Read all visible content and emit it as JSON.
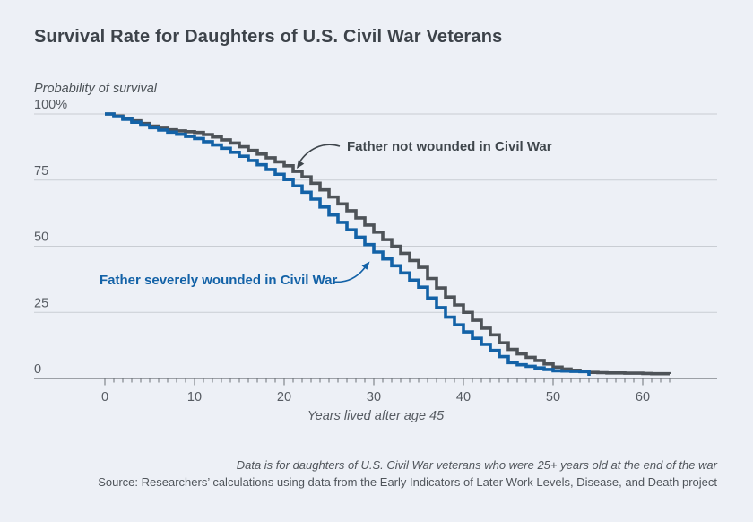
{
  "title": "Survival Rate for Daughters of U.S. Civil War Veterans",
  "footer": {
    "note": "Data is for daughters of U.S. Civil War veterans who were 25+ years old at the end of the war",
    "source": "Source: Researchers’ calculations using data from the Early Indicators of Later Work Levels, Disease, and Death project"
  },
  "colors": {
    "background": "#edf0f6",
    "gridline": "#c9cdd3",
    "axis": "#6b7077",
    "tick_label": "#565b62",
    "title": "#3d434a",
    "series_not_wounded": "#4e5358",
    "series_wounded": "#1362a7"
  },
  "chart_data": {
    "type": "line",
    "subtype": "step-survival",
    "title": "Survival Rate for Daughters of U.S. Civil War Veterans",
    "ylabel": "Probability of survival",
    "xlabel": "Years lived after age 45",
    "ylim": [
      0,
      100
    ],
    "xlim": [
      0,
      63
    ],
    "grid": true,
    "yticks": [
      {
        "value": 100,
        "label": "100%"
      },
      {
        "value": 75,
        "label": "75"
      },
      {
        "value": 50,
        "label": "50"
      },
      {
        "value": 25,
        "label": "25"
      },
      {
        "value": 0,
        "label": "0"
      }
    ],
    "xticks": [
      0,
      10,
      20,
      30,
      40,
      50,
      60
    ],
    "minor_tick_interval": 1,
    "series": [
      {
        "name": "Father not wounded in Civil War",
        "color": "#4e5358",
        "x_start": 0,
        "x_step": 1,
        "values": [
          100,
          99.2,
          98.3,
          97.4,
          96.4,
          95.4,
          94.6,
          94.0,
          93.6,
          93.3,
          93.0,
          92.2,
          91.3,
          90.2,
          89.0,
          87.6,
          86.2,
          84.8,
          83.4,
          81.9,
          80.4,
          78.3,
          76.2,
          73.8,
          71.3,
          68.6,
          66.0,
          63.4,
          60.7,
          58.0,
          55.3,
          52.5,
          50.0,
          47.3,
          44.6,
          42.0,
          37.8,
          34.2,
          30.8,
          27.8,
          25.0,
          22.0,
          19.0,
          16.5,
          13.5,
          11.0,
          9.3,
          8.0,
          6.8,
          5.5,
          4.3,
          3.6,
          3.1,
          2.7,
          2.3,
          2.2,
          2.1,
          2.1,
          2.0,
          2.0,
          1.9,
          1.8,
          1.8,
          1.7
        ]
      },
      {
        "name": "Father severely wounded in Civil War",
        "color": "#1362a7",
        "x_start": 0,
        "x_step": 1,
        "end_drop_to": 1.0,
        "values": [
          100,
          99.0,
          98.0,
          96.9,
          95.8,
          94.8,
          93.9,
          93.1,
          92.3,
          91.5,
          90.7,
          89.5,
          88.3,
          87.0,
          85.5,
          84.0,
          82.4,
          80.8,
          79.0,
          77.2,
          75.2,
          72.8,
          70.4,
          67.8,
          64.8,
          61.8,
          59.0,
          56.2,
          53.4,
          50.6,
          47.8,
          45.2,
          42.6,
          39.9,
          37.2,
          34.5,
          30.4,
          26.8,
          23.2,
          20.3,
          17.6,
          15.2,
          12.9,
          10.6,
          8.3,
          6.0,
          5.2,
          4.6,
          4.0,
          3.4,
          2.9,
          2.8,
          2.7,
          2.6,
          2.5
        ]
      }
    ],
    "annotations": [
      {
        "text": "Father not wounded in Civil War",
        "color": "#3f464c",
        "series": "Father not wounded in Civil War"
      },
      {
        "text": "Father severely wounded in Civil War",
        "color": "#1362a7",
        "series": "Father severely wounded in Civil War"
      }
    ],
    "legend_position": "none (direct labels with arrows)"
  }
}
